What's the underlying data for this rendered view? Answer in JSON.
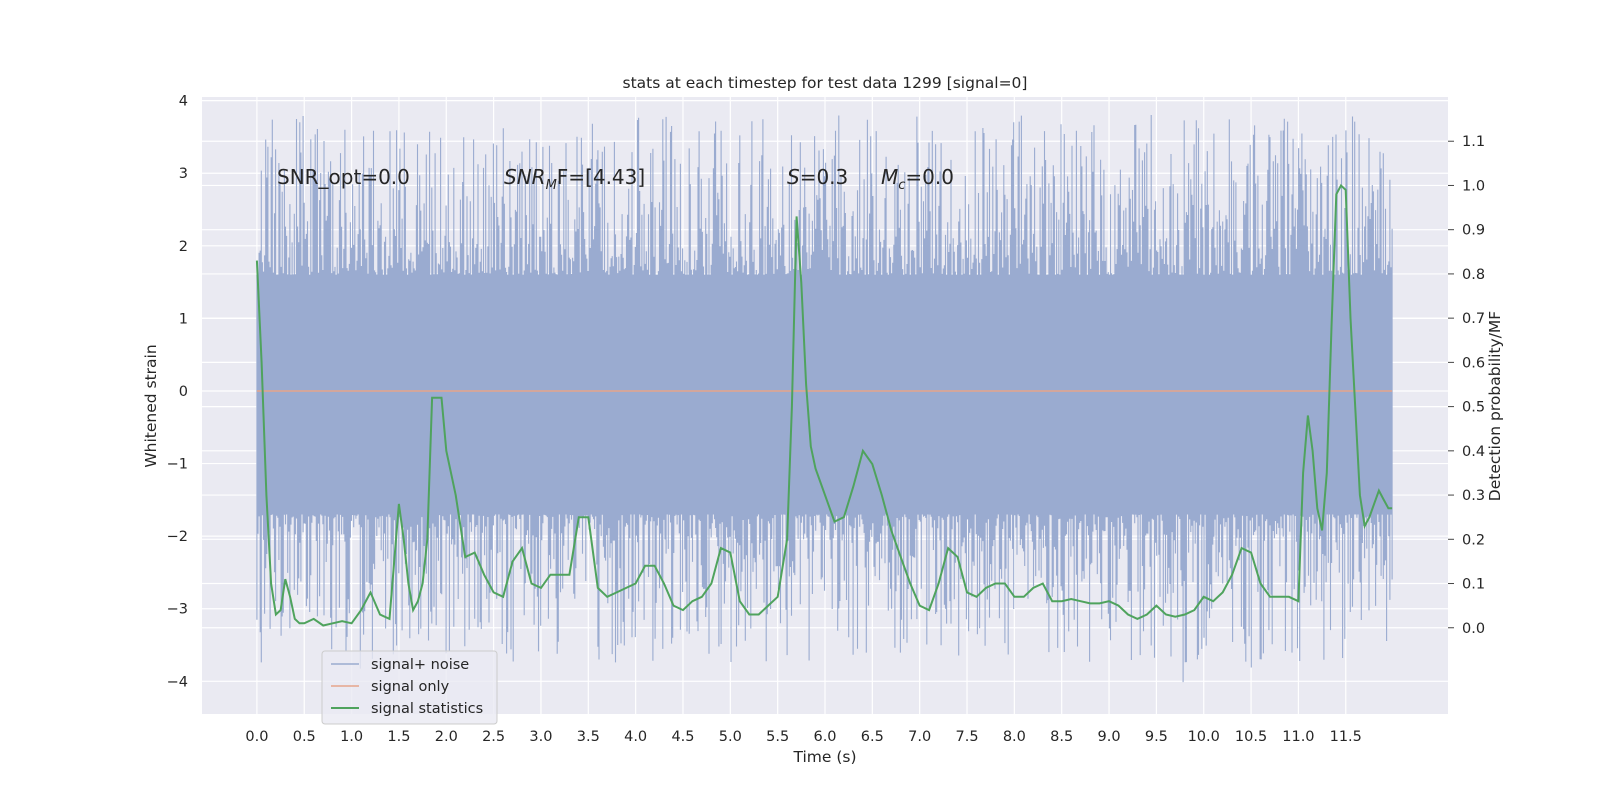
{
  "chart_data": {
    "type": "line",
    "title": "stats at each timestep for test data 1299 [signal=0]",
    "xlabel": "Time (s)",
    "ylabel": "Whitened strain",
    "y2label": "Detection probability/MF",
    "xlim": [
      -0.58,
      12.58
    ],
    "ylim": [
      -4.45,
      4.05
    ],
    "y2lim": [
      -0.195,
      1.2
    ],
    "x_ticks": [
      "0.0",
      "0.5",
      "1.0",
      "1.5",
      "2.0",
      "2.5",
      "3.0",
      "3.5",
      "4.0",
      "4.5",
      "5.0",
      "5.5",
      "6.0",
      "6.5",
      "7.0",
      "7.5",
      "8.0",
      "8.5",
      "9.0",
      "9.5",
      "10.0",
      "10.5",
      "11.0",
      "11.5"
    ],
    "y_ticks": [
      "4",
      "3",
      "2",
      "1",
      "0",
      "−1",
      "−2",
      "−3",
      "−4"
    ],
    "y2_ticks": [
      "1.1",
      "1.0",
      "0.9",
      "0.8",
      "0.7",
      "0.6",
      "0.5",
      "0.4",
      "0.3",
      "0.2",
      "0.1",
      "0.0"
    ],
    "grid": true,
    "legend_position": "lower-left",
    "annotations": {
      "snr_opt": "SNR_opt=0.0",
      "snr_mf": "SNR",
      "snr_mf_sub": "M",
      "snr_mf_rest": "F=[4.43]",
      "s_italic": "S",
      "s_rest": "=0.3",
      "mc_italic": "M",
      "mc_sub": "c",
      "mc_rest": "=0.0"
    },
    "series": [
      {
        "name": "signal+ noise",
        "color": "#9aabd0",
        "style": "dense-noise",
        "x_range": [
          0.0,
          11.99
        ],
        "band_envelope": [
          -1.7,
          1.6
        ],
        "peak_envelope": [
          -4.1,
          3.7
        ]
      },
      {
        "name": "signal only",
        "color": "#e6a58b",
        "x": [
          0.0,
          11.99
        ],
        "y": [
          0.0,
          0.0
        ]
      },
      {
        "name": "signal statistics",
        "color": "#4fa35d",
        "axis": "right",
        "x": [
          0.0,
          0.05,
          0.1,
          0.15,
          0.2,
          0.25,
          0.3,
          0.35,
          0.4,
          0.45,
          0.5,
          0.6,
          0.7,
          0.8,
          0.9,
          1.0,
          1.1,
          1.2,
          1.3,
          1.4,
          1.5,
          1.55,
          1.6,
          1.65,
          1.7,
          1.75,
          1.8,
          1.85,
          1.9,
          1.95,
          2.0,
          2.05,
          2.1,
          2.2,
          2.3,
          2.4,
          2.5,
          2.6,
          2.7,
          2.8,
          2.9,
          3.0,
          3.1,
          3.2,
          3.3,
          3.4,
          3.5,
          3.6,
          3.7,
          3.8,
          3.9,
          4.0,
          4.1,
          4.2,
          4.3,
          4.4,
          4.5,
          4.6,
          4.7,
          4.8,
          4.9,
          5.0,
          5.1,
          5.2,
          5.3,
          5.4,
          5.5,
          5.6,
          5.65,
          5.7,
          5.75,
          5.8,
          5.85,
          5.9,
          6.0,
          6.1,
          6.2,
          6.3,
          6.4,
          6.5,
          6.6,
          6.7,
          6.8,
          6.9,
          7.0,
          7.1,
          7.2,
          7.3,
          7.4,
          7.5,
          7.6,
          7.7,
          7.8,
          7.9,
          8.0,
          8.1,
          8.2,
          8.3,
          8.4,
          8.5,
          8.6,
          8.7,
          8.8,
          8.9,
          9.0,
          9.1,
          9.2,
          9.3,
          9.4,
          9.5,
          9.6,
          9.7,
          9.8,
          9.9,
          10.0,
          10.1,
          10.2,
          10.3,
          10.4,
          10.5,
          10.6,
          10.7,
          10.8,
          10.9,
          11.0,
          11.05,
          11.1,
          11.15,
          11.2,
          11.25,
          11.3,
          11.35,
          11.4,
          11.45,
          11.5,
          11.55,
          11.6,
          11.65,
          11.7,
          11.75,
          11.8,
          11.85,
          11.9,
          11.95,
          11.99
        ],
        "y": [
          0.83,
          0.6,
          0.3,
          0.1,
          0.03,
          0.04,
          0.11,
          0.07,
          0.02,
          0.01,
          0.01,
          0.02,
          0.005,
          0.01,
          0.015,
          0.01,
          0.04,
          0.08,
          0.03,
          0.02,
          0.28,
          0.2,
          0.1,
          0.04,
          0.06,
          0.1,
          0.2,
          0.52,
          0.52,
          0.52,
          0.4,
          0.35,
          0.3,
          0.16,
          0.17,
          0.12,
          0.08,
          0.07,
          0.15,
          0.18,
          0.1,
          0.09,
          0.12,
          0.12,
          0.12,
          0.25,
          0.25,
          0.09,
          0.07,
          0.08,
          0.09,
          0.1,
          0.14,
          0.14,
          0.1,
          0.05,
          0.04,
          0.06,
          0.07,
          0.1,
          0.18,
          0.17,
          0.06,
          0.03,
          0.03,
          0.05,
          0.07,
          0.2,
          0.5,
          0.93,
          0.78,
          0.55,
          0.41,
          0.36,
          0.3,
          0.24,
          0.25,
          0.32,
          0.4,
          0.37,
          0.3,
          0.22,
          0.16,
          0.1,
          0.05,
          0.04,
          0.1,
          0.18,
          0.16,
          0.08,
          0.07,
          0.09,
          0.1,
          0.1,
          0.07,
          0.07,
          0.09,
          0.1,
          0.06,
          0.06,
          0.065,
          0.06,
          0.055,
          0.055,
          0.06,
          0.05,
          0.03,
          0.02,
          0.03,
          0.05,
          0.03,
          0.025,
          0.03,
          0.04,
          0.07,
          0.06,
          0.08,
          0.12,
          0.18,
          0.17,
          0.1,
          0.07,
          0.07,
          0.07,
          0.06,
          0.35,
          0.48,
          0.4,
          0.27,
          0.22,
          0.35,
          0.68,
          0.98,
          1.0,
          0.99,
          0.7,
          0.5,
          0.3,
          0.23,
          0.25,
          0.28,
          0.31,
          0.29,
          0.27,
          0.27
        ]
      }
    ]
  }
}
